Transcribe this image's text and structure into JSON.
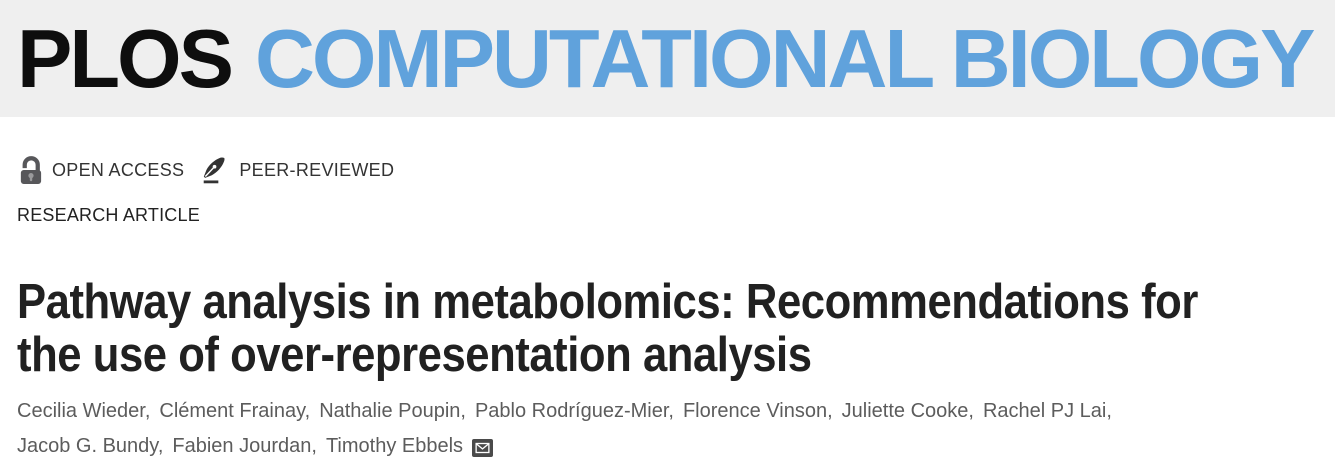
{
  "banner": {
    "logo_plos": "PLOS",
    "logo_journal": "COMPUTATIONAL BIOLOGY"
  },
  "badges": {
    "open_access": "OPEN ACCESS",
    "peer_reviewed": "PEER-REVIEWED"
  },
  "article": {
    "kicker": "RESEARCH ARTICLE",
    "title": "Pathway analysis in metabolomics: Recommendations for the use of over-representation analysis",
    "title_line1": "Pathway analysis in metabolomics: Recommendations for",
    "title_line2": "the use of over-representation analysis",
    "authors": [
      "Cecilia Wieder",
      "Clément Frainay",
      "Nathalie Poupin",
      "Pablo Rodríguez-Mier",
      "Florence Vinson",
      "Juliette Cooke",
      "Rachel PJ Lai",
      "Jacob G. Bundy",
      "Fabien Jourdan",
      "Timothy Ebbels"
    ],
    "authors_line_break_index": 7,
    "corresponding_author": "Timothy Ebbels"
  },
  "icons": {
    "open_access": "open-lock-icon",
    "peer_reviewed": "pen-nib-icon",
    "corresponding_email": "envelope-icon"
  },
  "colors": {
    "banner_bg": "#efefef",
    "journal_blue": "#60a2dc",
    "logo_black": "#0e0e0e",
    "badge_text": "#333333",
    "title_text": "#212121",
    "author_text": "#5c5c5c",
    "envelope_bg": "#4a4a4a"
  }
}
